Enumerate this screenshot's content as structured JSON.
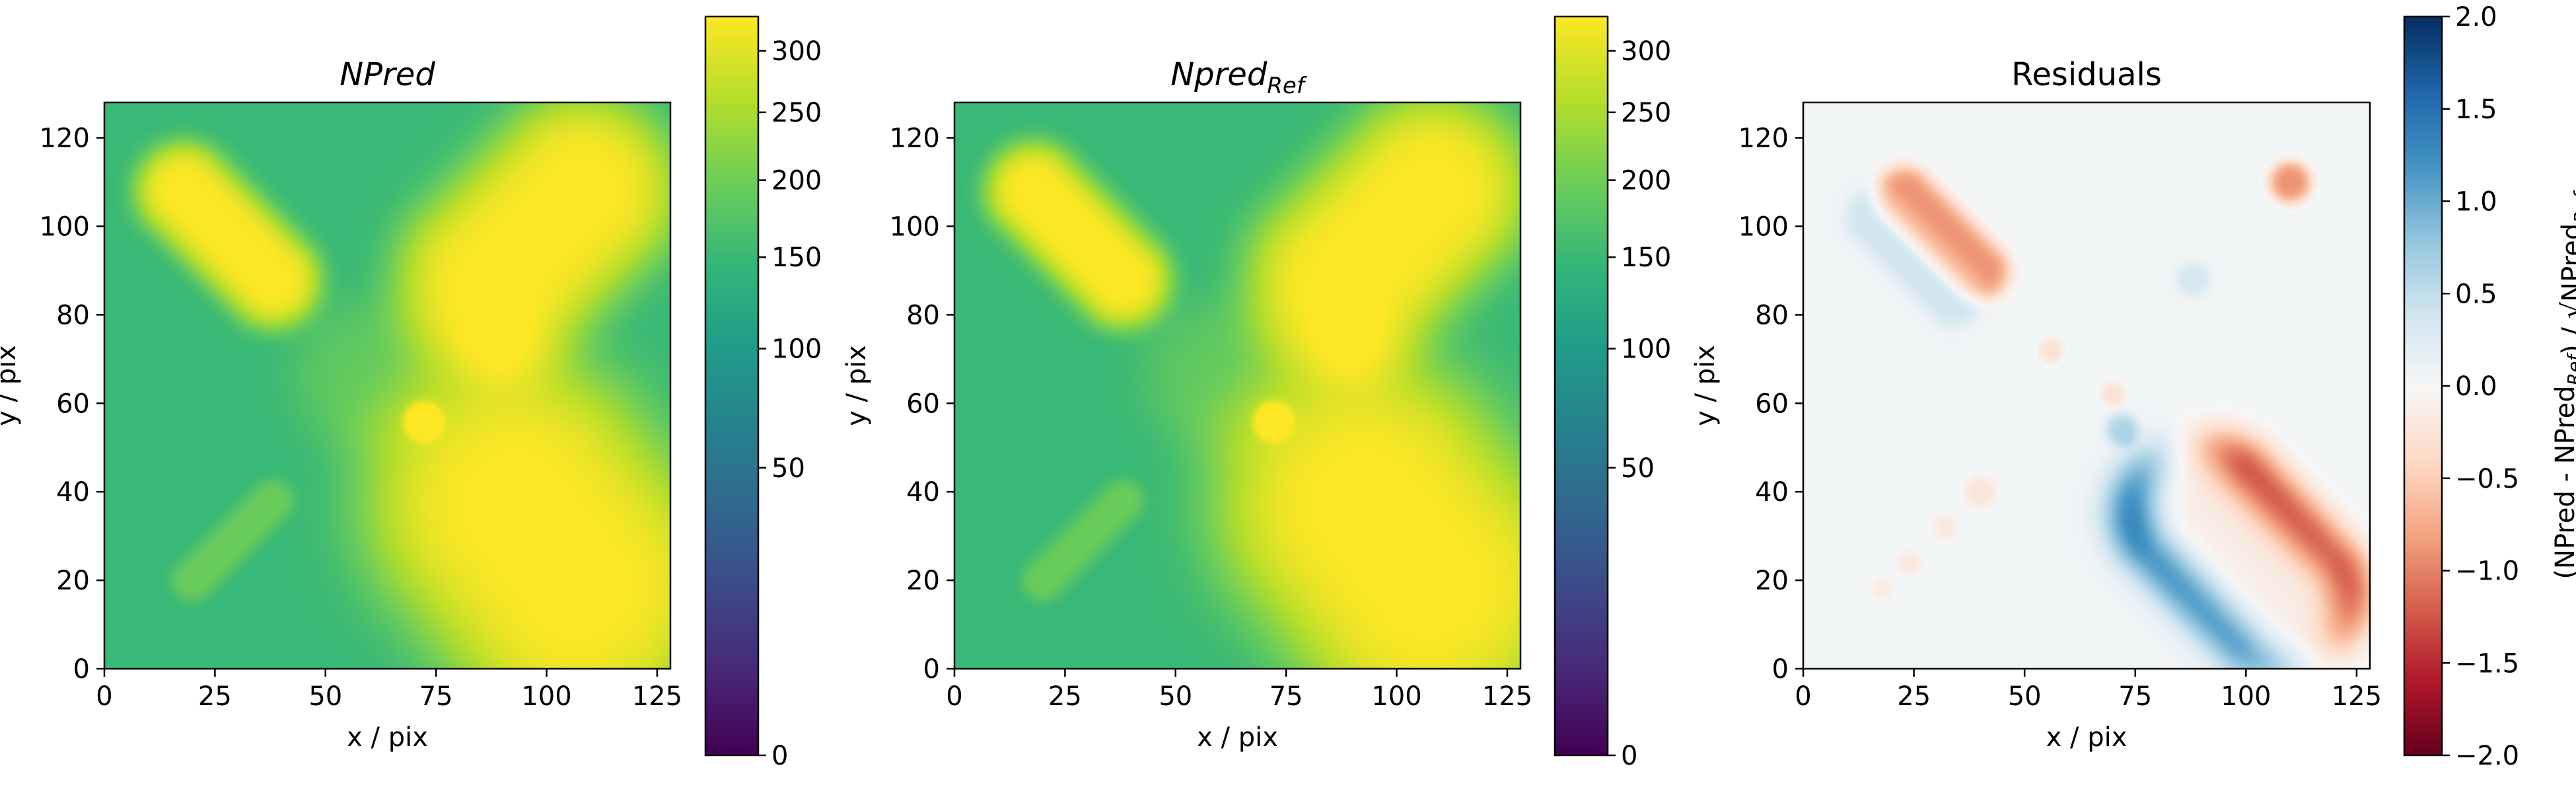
{
  "chart_data": [
    {
      "type": "heatmap",
      "title_main": "NPred",
      "title_sub": "",
      "title_italic": true,
      "xlabel": "x / pix",
      "ylabel": "y / pix",
      "xlim": [
        0,
        128
      ],
      "ylim": [
        0,
        128
      ],
      "xticks": [
        "0",
        "25",
        "50",
        "75",
        "100",
        "125"
      ],
      "yticks": [
        "0",
        "20",
        "40",
        "60",
        "80",
        "100",
        "120"
      ],
      "colormap": "viridis",
      "colorbar": {
        "scale": "sqrt",
        "range": [
          0,
          330
        ],
        "ticks": [
          "0",
          "50",
          "100",
          "150",
          "200",
          "250",
          "300"
        ],
        "label": ""
      },
      "image": {
        "background": 150,
        "features": [
          {
            "shape": "ellipse",
            "x": [
              18,
              38
            ],
            "y": [
              108,
              88
            ],
            "width": 11,
            "value": 330
          },
          {
            "shape": "ellipse",
            "x": [
              88,
              108
            ],
            "y": [
              88,
              108
            ],
            "width": 22,
            "value": 330
          },
          {
            "shape": "ellipse",
            "x": [
              93,
              107
            ],
            "y": [
              37,
              19
            ],
            "width": 34,
            "value": 330
          },
          {
            "shape": "ellipse",
            "x": [
              20,
              38
            ],
            "y": [
              20,
              38
            ],
            "width": 5,
            "value": 195
          },
          {
            "shape": "disc",
            "x": 60,
            "y": 66,
            "radius": 18,
            "value": 185
          },
          {
            "shape": "disc",
            "x": 72,
            "y": 56,
            "radius": 4,
            "value": 330
          }
        ]
      }
    },
    {
      "type": "heatmap",
      "title_main": "Npred",
      "title_sub": "Ref",
      "title_italic": true,
      "xlabel": "x / pix",
      "ylabel": "y / pix",
      "xlim": [
        0,
        128
      ],
      "ylim": [
        0,
        128
      ],
      "xticks": [
        "0",
        "25",
        "50",
        "75",
        "100",
        "125"
      ],
      "yticks": [
        "0",
        "20",
        "40",
        "60",
        "80",
        "100",
        "120"
      ],
      "colormap": "viridis",
      "colorbar": {
        "scale": "sqrt",
        "range": [
          0,
          330
        ],
        "ticks": [
          "0",
          "50",
          "100",
          "150",
          "200",
          "250",
          "300"
        ],
        "label": ""
      },
      "image": {
        "background": 150,
        "features": [
          {
            "shape": "ellipse",
            "x": [
              18,
              38
            ],
            "y": [
              108,
              88
            ],
            "width": 11,
            "value": 330
          },
          {
            "shape": "ellipse",
            "x": [
              88,
              108
            ],
            "y": [
              88,
              108
            ],
            "width": 22,
            "value": 330
          },
          {
            "shape": "ellipse",
            "x": [
              93,
              107
            ],
            "y": [
              37,
              19
            ],
            "width": 34,
            "value": 330
          },
          {
            "shape": "ellipse",
            "x": [
              20,
              38
            ],
            "y": [
              20,
              38
            ],
            "width": 5,
            "value": 195
          },
          {
            "shape": "disc",
            "x": 60,
            "y": 66,
            "radius": 18,
            "value": 185
          },
          {
            "shape": "disc",
            "x": 72,
            "y": 56,
            "radius": 4,
            "value": 330
          }
        ]
      }
    },
    {
      "type": "heatmap",
      "title_main": "Residuals",
      "title_sub": "",
      "title_italic": false,
      "xlabel": "x / pix",
      "ylabel": "y / pix",
      "xlim": [
        0,
        128
      ],
      "ylim": [
        0,
        128
      ],
      "xticks": [
        "0",
        "25",
        "50",
        "75",
        "100",
        "125"
      ],
      "yticks": [
        "0",
        "20",
        "40",
        "60",
        "80",
        "100",
        "120"
      ],
      "colormap": "RdBu",
      "colorbar": {
        "scale": "linear",
        "range": [
          -2,
          2
        ],
        "ticks": [
          "−2.0",
          "−1.5",
          "−1.0",
          "−0.5",
          "0.0",
          "0.5",
          "1.0",
          "1.5",
          "2.0"
        ],
        "label": "(NPred - NPred_Ref) / √NPred_Ref"
      },
      "image": {
        "background": 0.05,
        "features": [
          {
            "shape": "ellipse",
            "x": [
              23,
              40
            ],
            "y": [
              107,
              90
            ],
            "width": 7,
            "value": -0.9
          },
          {
            "shape": "ellipse",
            "x": [
              16,
              34
            ],
            "y": [
              102,
              84
            ],
            "width": 7,
            "value": 0.4
          },
          {
            "shape": "ellipse",
            "x": [
              93,
              112
            ],
            "y": [
              37,
              17
            ],
            "width": 16,
            "value": -2.0
          },
          {
            "shape": "ellipse",
            "x": [
              85,
              106
            ],
            "y": [
              35,
              14
            ],
            "width": 16,
            "value": 1.9
          },
          {
            "shape": "disc",
            "x": 110,
            "y": 110,
            "radius": 5,
            "value": -0.9
          },
          {
            "shape": "disc",
            "x": 88,
            "y": 88,
            "radius": 4,
            "value": 0.35
          },
          {
            "shape": "disc",
            "x": 72,
            "y": 54,
            "radius": 4,
            "value": 0.6
          },
          {
            "shape": "disc",
            "x": 70,
            "y": 62,
            "radius": 3,
            "value": -0.3
          },
          {
            "shape": "disc",
            "x": 56,
            "y": 72,
            "radius": 3,
            "value": -0.3
          },
          {
            "shape": "disc",
            "x": 40,
            "y": 40,
            "radius": 4,
            "value": -0.25
          },
          {
            "shape": "disc",
            "x": 32,
            "y": 32,
            "radius": 3,
            "value": -0.2
          },
          {
            "shape": "disc",
            "x": 24,
            "y": 24,
            "radius": 3,
            "value": -0.2
          },
          {
            "shape": "disc",
            "x": 18,
            "y": 18,
            "radius": 3,
            "value": -0.15
          }
        ]
      }
    }
  ]
}
